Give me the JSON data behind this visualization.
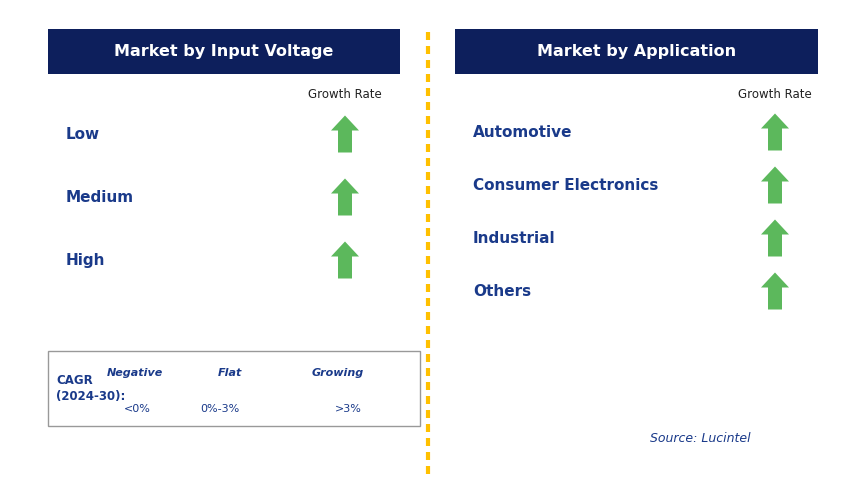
{
  "left_title": "Market by Input Voltage",
  "right_title": "Market by Application",
  "left_items": [
    "Low",
    "Medium",
    "High"
  ],
  "right_items": [
    "Automotive",
    "Consumer Electronics",
    "Industrial",
    "Others"
  ],
  "header_bg_color": "#0d1f5c",
  "header_text_color": "#ffffff",
  "item_text_color": "#1a3a8a",
  "growth_rate_color": "#222222",
  "growth_rate_label": "Growth Rate",
  "arrow_color_up": "#5cb85c",
  "arrow_color_down": "#cc0000",
  "arrow_color_flat": "#ffc000",
  "dashed_line_color": "#ffc000",
  "legend_cagr_line1": "CAGR",
  "legend_cagr_line2": "(2024-30):",
  "legend_negative_label": "Negative",
  "legend_negative_sublabel": "<0%",
  "legend_flat_label": "Flat",
  "legend_flat_sublabel": "0%-3%",
  "legend_growing_label": "Growing",
  "legend_growing_sublabel": ">3%",
  "source_text": "Source: Lucintel",
  "bg_color": "#ffffff",
  "fig_width": 8.49,
  "fig_height": 4.99,
  "dpi": 100
}
